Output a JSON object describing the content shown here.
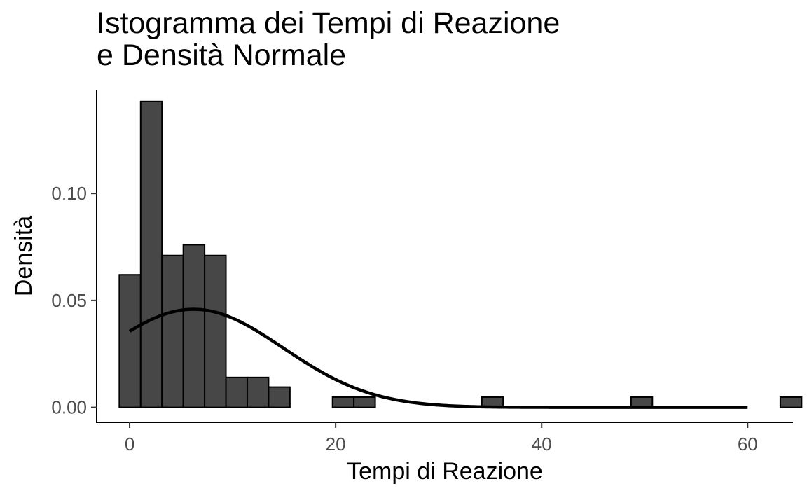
{
  "chart_data": {
    "type": "bar",
    "title_lines": [
      "Istogramma dei Tempi di Reazione",
      "e Densità Normale"
    ],
    "xlabel": "Tempi di Reazione",
    "ylabel": "Densità",
    "xlim": [
      -3.2,
      64.4
    ],
    "ylim": [
      -0.007,
      0.1485
    ],
    "x_ticks": [
      {
        "value": 0,
        "label": "0"
      },
      {
        "value": 20,
        "label": "20"
      },
      {
        "value": 40,
        "label": "40"
      },
      {
        "value": 60,
        "label": "60"
      }
    ],
    "y_ticks": [
      {
        "value": 0.0,
        "label": "0.00"
      },
      {
        "value": 0.05,
        "label": "0.05"
      },
      {
        "value": 0.1,
        "label": "0.10"
      }
    ],
    "bin_width": 2.07,
    "bin_start": -1.0,
    "histogram_densities": [
      0.062,
      0.143,
      0.071,
      0.076,
      0.071,
      0.014,
      0.014,
      0.0095,
      0,
      0,
      0.0048,
      0.0048,
      0,
      0,
      0,
      0,
      0,
      0.0048,
      0,
      0,
      0,
      0,
      0,
      0,
      0.0048,
      0,
      0,
      0,
      0,
      0,
      0,
      0.0048
    ],
    "density_curve": {
      "distribution": "normal",
      "mean": 6.2,
      "sd": 8.7,
      "x_range": [
        0,
        60
      ]
    },
    "bar_color": "#474747",
    "bar_stroke": "#000000",
    "line_color": "#000000",
    "grid": false,
    "legend": "none"
  }
}
